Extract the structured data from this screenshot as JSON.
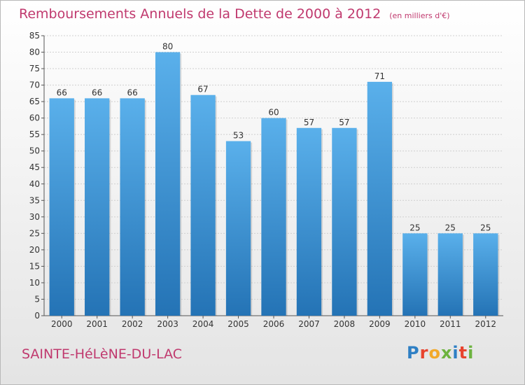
{
  "title": "Remboursements Annuels de la Dette de 2000 à 2012",
  "unit": "(en milliers d'€)",
  "place_name": "SAINTE-HéLèNE-DU-LAC",
  "logo": {
    "text": "Proxiti",
    "letter_colors": [
      "#2e7fc4",
      "#e8432e",
      "#f2a92a",
      "#6db33f",
      "#2e7fc4",
      "#e8432e",
      "#6db33f"
    ]
  },
  "colors": {
    "bar_top": "#5ab0eb",
    "bar_bottom": "#2473b5",
    "title": "#c0396e",
    "axis": "#555555",
    "grid": "#cfcfcf"
  },
  "chart_data": {
    "type": "bar",
    "categories": [
      "2000",
      "2001",
      "2002",
      "2003",
      "2004",
      "2005",
      "2006",
      "2007",
      "2008",
      "2009",
      "2010",
      "2011",
      "2012"
    ],
    "values": [
      66,
      66,
      66,
      80,
      67,
      53,
      60,
      57,
      57,
      71,
      25,
      25,
      25
    ],
    "ylim": [
      0,
      85
    ],
    "yticks": [
      0,
      5,
      10,
      15,
      20,
      25,
      30,
      35,
      40,
      45,
      50,
      55,
      60,
      65,
      70,
      75,
      80,
      85
    ],
    "grid": true,
    "data_labels": true
  }
}
